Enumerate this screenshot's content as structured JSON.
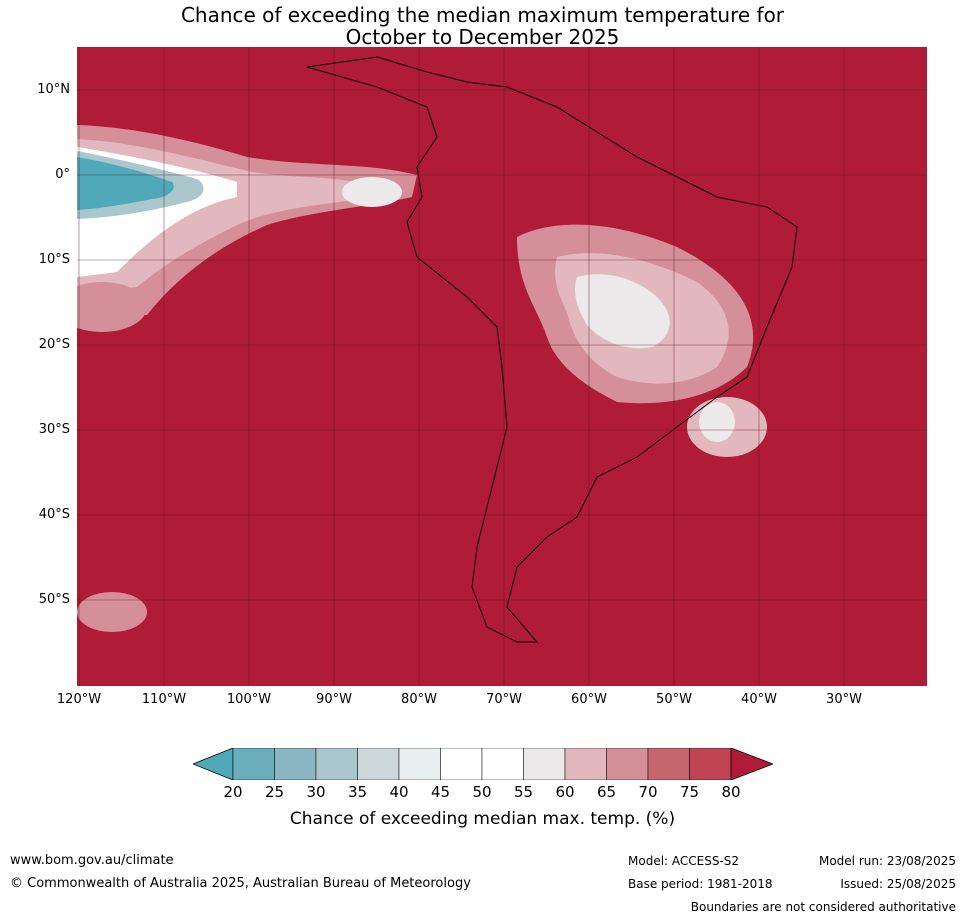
{
  "title_line1": "Chance of exceeding the median maximum temperature for",
  "title_line2": "October to December 2025",
  "lat_labels": [
    "10°N",
    "0°",
    "10°S",
    "20°S",
    "30°S",
    "40°S",
    "50°S"
  ],
  "lon_labels": [
    "120°W",
    "110°W",
    "100°W",
    "90°W",
    "80°W",
    "70°W",
    "60°W",
    "50°W",
    "40°W",
    "30°W"
  ],
  "colorbar": {
    "ticks": [
      "20",
      "25",
      "30",
      "35",
      "40",
      "45",
      "50",
      "55",
      "60",
      "65",
      "70",
      "75",
      "80"
    ],
    "colors": [
      "#50a9b8",
      "#6aaebc",
      "#8ab7c3",
      "#a9c7cd",
      "#ccd7da",
      "#e9eff1",
      "#ffffff",
      "#ffffff",
      "#ebe9ea",
      "#e2b7bd",
      "#d48f98",
      "#c8666f",
      "#c04453",
      "#b01c37"
    ],
    "label": "Chance of exceeding median max. temp. (%)"
  },
  "footer": {
    "url": "www.bom.gov.au/climate",
    "copyright": "© Commonwealth of Australia 2025, Australian Bureau of Meteorology",
    "model": "Model: ACCESS-S2",
    "base_period": "Base period: 1981-2018",
    "model_run": "Model run: 23/08/2025",
    "issued": "Issued: 25/08/2025",
    "disclaimer": "Boundaries are not considered authoritative"
  }
}
